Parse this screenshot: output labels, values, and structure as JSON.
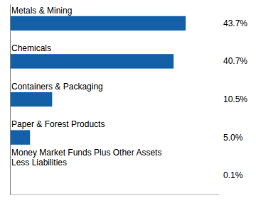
{
  "chart_data": {
    "type": "bar",
    "orientation": "horizontal",
    "categories": [
      "Money Market Funds Plus Other Assets\nLess Liabilities",
      "Paper & Forest Products",
      "Containers & Packaging",
      "Chemicals",
      "Metals & Mining"
    ],
    "values": [
      0.1,
      5.0,
      10.5,
      40.7,
      43.7
    ],
    "value_labels": [
      "0.1%",
      "5.0%",
      "10.5%",
      "40.7%",
      "43.7%"
    ],
    "color": "#1460A8",
    "xlim": [
      0,
      52
    ],
    "data_labels": true,
    "tick_labels": false
  }
}
